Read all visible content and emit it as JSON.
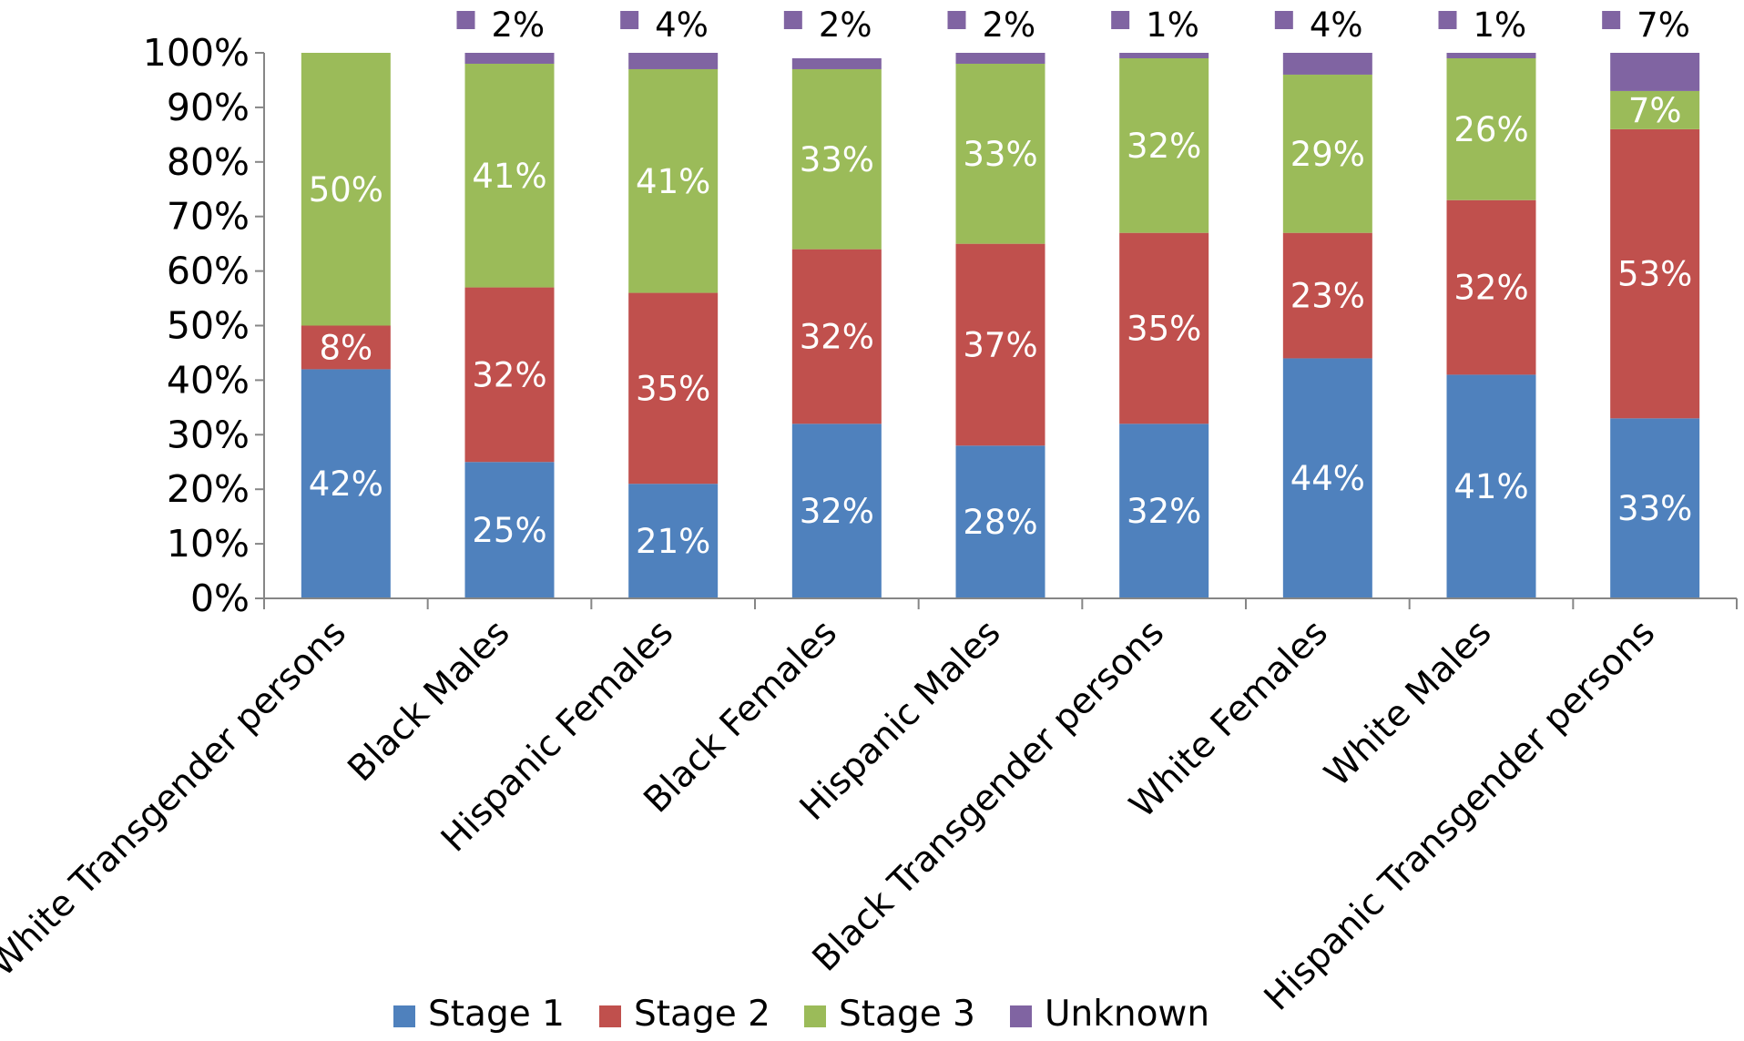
{
  "chart_data": {
    "type": "stacked-bar-100",
    "title": "",
    "xlabel": "",
    "ylabel": "",
    "ylim": [
      0,
      100
    ],
    "y_ticks": [
      "0%",
      "10%",
      "20%",
      "30%",
      "40%",
      "50%",
      "60%",
      "70%",
      "80%",
      "90%",
      "100%"
    ],
    "legend_position": "bottom",
    "grid": false,
    "categories": [
      "White Transgender persons",
      "Black Males",
      "Hispanic Females",
      "Black Females",
      "Hispanic Males",
      "Black Transgender persons",
      "White Females",
      "White Males",
      "Hispanic Transgender persons"
    ],
    "series": [
      {
        "name": "Stage 1",
        "color": "#4F81BD",
        "values": [
          42,
          25,
          21,
          32,
          28,
          32,
          44,
          41,
          33
        ]
      },
      {
        "name": "Stage 2",
        "color": "#C0504D",
        "values": [
          8,
          32,
          35,
          32,
          37,
          35,
          23,
          32,
          53
        ]
      },
      {
        "name": "Stage 3",
        "color": "#9BBB59",
        "values": [
          50,
          41,
          41,
          33,
          33,
          32,
          29,
          26,
          7
        ]
      },
      {
        "name": "Unknown",
        "color": "#8064A2",
        "values": [
          0,
          2,
          4,
          2,
          2,
          1,
          4,
          1,
          7
        ]
      }
    ],
    "data_labels": {
      "Stage 1": [
        "42%",
        "25%",
        "21%",
        "32%",
        "28%",
        "32%",
        "44%",
        "41%",
        "33%"
      ],
      "Stage 2": [
        "8%",
        "32%",
        "35%",
        "32%",
        "37%",
        "35%",
        "23%",
        "32%",
        "53%"
      ],
      "Stage 3": [
        "50%",
        "41%",
        "41%",
        "33%",
        "33%",
        "32%",
        "29%",
        "26%",
        "7%"
      ],
      "Unknown": [
        "",
        "2%",
        "4%",
        "2%",
        "2%",
        "1%",
        "4%",
        "1%",
        "7%"
      ]
    }
  }
}
